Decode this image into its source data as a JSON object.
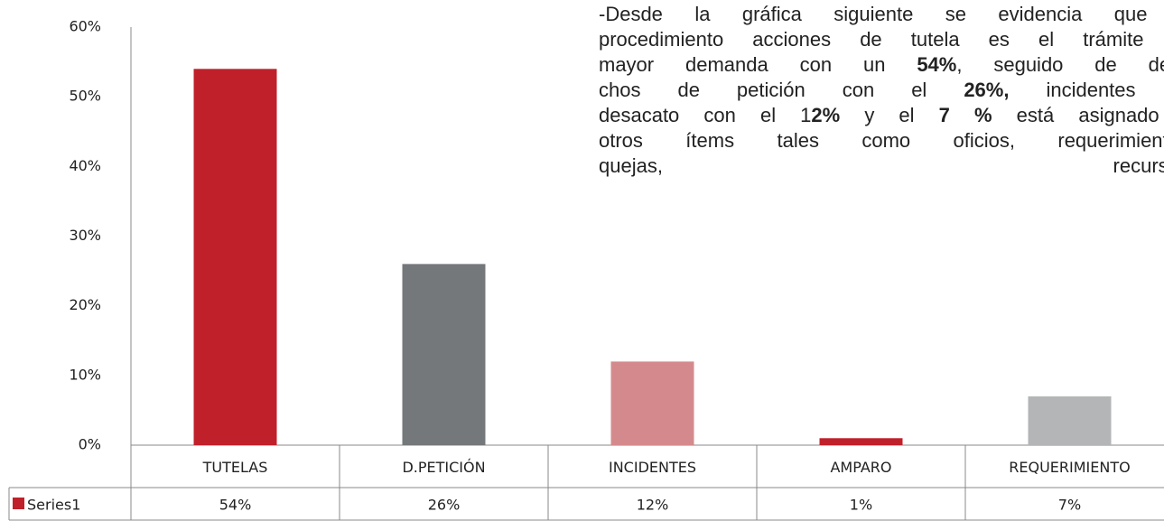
{
  "chart_data": {
    "type": "bar",
    "categories": [
      "TUTELAS",
      "D.PETICIÓN",
      "INCIDENTES",
      "AMPARO",
      "REQUERIMIENTO"
    ],
    "series": [
      {
        "name": "Series1",
        "color": "#c0202a",
        "values": [
          54,
          26,
          12,
          1,
          7
        ],
        "value_labels": [
          "54%",
          "26%",
          "12%",
          "1%",
          "7%"
        ],
        "colors": [
          "#c0202a",
          "#75787b",
          "#d48a8c",
          "#c0202a",
          "#b3b5b6"
        ]
      }
    ],
    "ylim": [
      0,
      60
    ],
    "yticks": [
      {
        "value": 0,
        "label": "0%"
      },
      {
        "value": 10,
        "label": "10%"
      },
      {
        "value": 20,
        "label": "20%"
      },
      {
        "value": 30,
        "label": "30%"
      },
      {
        "value": 40,
        "label": "40%"
      },
      {
        "value": 50,
        "label": "50%"
      },
      {
        "value": 60,
        "label": "60%"
      }
    ],
    "grid": false,
    "data_table": true
  },
  "text_lines": [
    [
      {
        "text": "-Desde la gráfica siguiente se evidencia que el",
        "bold": false
      }
    ],
    [
      {
        "text": "procedimiento acciones de tutela es el trámite de",
        "bold": false
      }
    ],
    [
      {
        "text": "mayor demanda con un ",
        "bold": false
      },
      {
        "text": "54%",
        "bold": true
      },
      {
        "text": ", seguido de dere-",
        "bold": false
      }
    ],
    [
      {
        "text": "chos de petición con el ",
        "bold": false
      },
      {
        "text": "26%,",
        "bold": true
      },
      {
        "text": " incidentes de",
        "bold": false
      }
    ],
    [
      {
        "text": "desacato con el 1",
        "bold": false
      },
      {
        "text": "2%",
        "bold": true
      },
      {
        "text": " y el ",
        "bold": false
      },
      {
        "text": "7 %",
        "bold": true
      },
      {
        "text": " está asignado a",
        "bold": false
      }
    ],
    [
      {
        "text": "otros ítems tales como oficios, requerimientos,",
        "bold": false
      }
    ],
    [
      {
        "text": "quejas, recursos.",
        "bold": false
      }
    ]
  ]
}
